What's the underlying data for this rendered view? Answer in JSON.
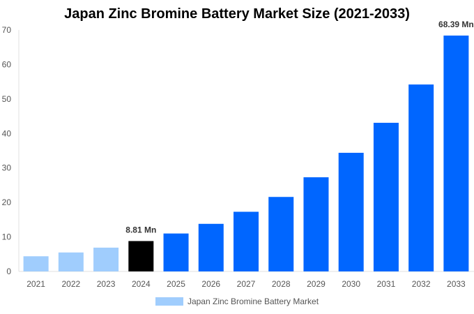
{
  "chart_data": {
    "type": "bar",
    "title": "Japan Zinc Bromine Battery Market Size (2021-2033)",
    "categories": [
      "2021",
      "2022",
      "2023",
      "2024",
      "2025",
      "2026",
      "2027",
      "2028",
      "2029",
      "2030",
      "2031",
      "2032",
      "2033"
    ],
    "series": [
      {
        "name": "Japan Zinc Bromine Battery Market",
        "values": [
          4.4,
          5.5,
          6.9,
          8.81,
          11.0,
          13.8,
          17.3,
          21.6,
          27.3,
          34.4,
          43.1,
          54.2,
          68.39
        ]
      }
    ],
    "data_labels": [
      {
        "category": "2024",
        "text": "8.81 Mn"
      },
      {
        "category": "2033",
        "text": "68.39 Mn"
      }
    ],
    "ylim": [
      0,
      70
    ],
    "yticks": [
      0,
      10,
      20,
      30,
      40,
      50,
      60,
      70
    ],
    "xlabel": "",
    "ylabel": "",
    "grid": false,
    "legend": "bottom",
    "colors": {
      "historic": "#a0cdfd",
      "current": "#000000",
      "forecast": "#0066ff"
    }
  }
}
